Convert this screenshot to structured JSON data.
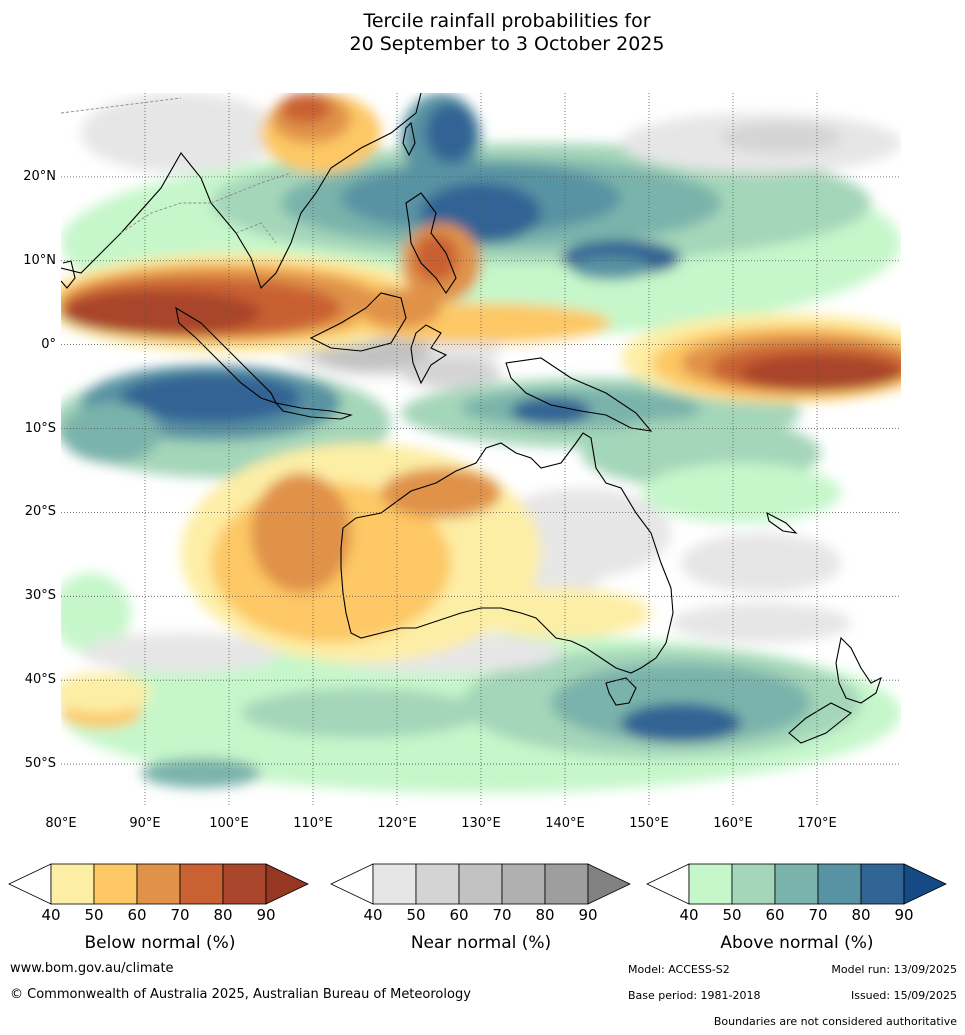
{
  "title": "Tercile rainfall probabilities for\n20 September to 3 October 2025",
  "map": {
    "type": "contour-map",
    "lat_ticks": [
      "20°N",
      "10°N",
      "0°",
      "10°S",
      "20°S",
      "30°S",
      "40°S",
      "50°S"
    ],
    "lon_ticks": [
      "80°E",
      "90°E",
      "100°E",
      "110°E",
      "120°E",
      "130°E",
      "140°E",
      "150°E",
      "160°E",
      "170°E"
    ],
    "lat_range": [
      -55,
      30
    ],
    "lon_range": [
      80,
      180
    ],
    "gridlines": true
  },
  "colorbars": [
    {
      "label": "Below normal (%)",
      "ticks": [
        "40",
        "50",
        "60",
        "70",
        "80",
        "90"
      ],
      "colors": [
        "#ffffff",
        "#fdeea5",
        "#fdc865",
        "#e0924a",
        "#c96133",
        "#a8452a",
        "#953723"
      ]
    },
    {
      "label": "Near normal (%)",
      "ticks": [
        "40",
        "50",
        "60",
        "70",
        "80",
        "90"
      ],
      "colors": [
        "#ffffff",
        "#e6e6e6",
        "#d4d4d4",
        "#c2c2c2",
        "#b0b0b0",
        "#9e9e9e",
        "#818181"
      ]
    },
    {
      "label": "Above normal (%)",
      "ticks": [
        "40",
        "50",
        "60",
        "70",
        "80",
        "90"
      ],
      "colors": [
        "#ffffff",
        "#c6f7cb",
        "#a4d6b9",
        "#7ab3ab",
        "#5893a3",
        "#306494",
        "#154a85"
      ]
    }
  ],
  "footer": {
    "website": "www.bom.gov.au/climate",
    "copyright": "© Commonwealth of Australia 2025, Australian Bureau of Meteorology",
    "model": "Model: ACCESS-S2",
    "model_run": "Model run: 13/09/2025",
    "base_period": "Base period: 1981-2018",
    "issued": "Issued: 15/09/2025",
    "disclaimer": "Boundaries are not considered authoritative"
  }
}
